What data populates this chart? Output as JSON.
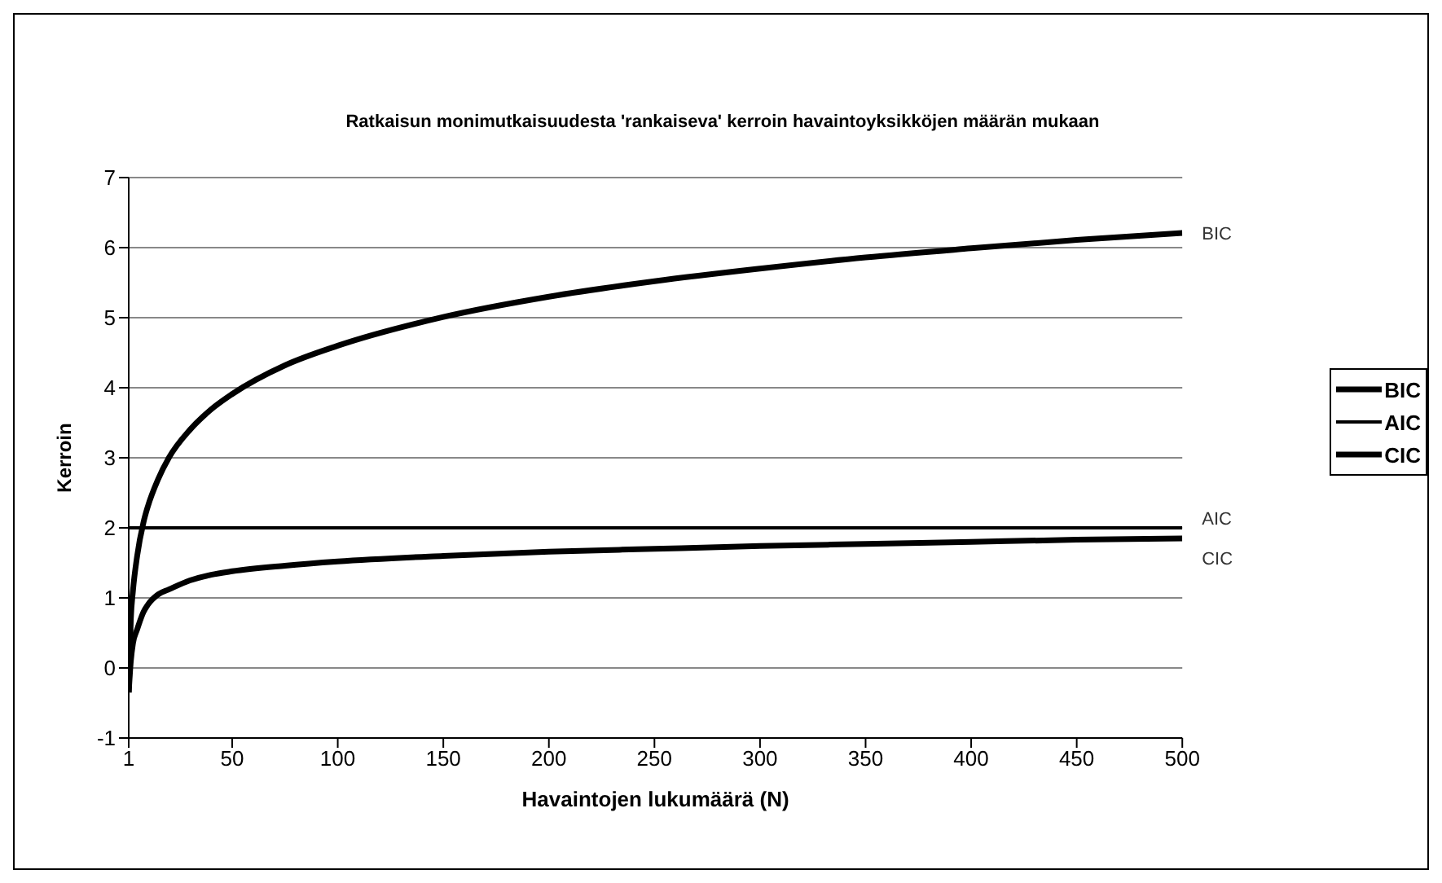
{
  "chart_data": {
    "type": "line",
    "title": "Ratkaisun monimutkaisuudesta 'rankaiseva' kerroin havaintoyksikköjen määrän mukaan",
    "xlabel": "Havaintojen lukumäärä (N)",
    "ylabel": "Kerroin",
    "x": [
      1,
      2,
      3,
      5,
      8,
      10,
      15,
      20,
      30,
      40,
      50,
      75,
      100,
      150,
      200,
      250,
      300,
      350,
      400,
      450,
      500
    ],
    "series": [
      {
        "name": "BIC",
        "color": "#000000",
        "values": [
          -0.35,
          0.7,
          1.1,
          1.6,
          2.08,
          2.3,
          2.7,
          3.0,
          3.4,
          3.69,
          3.91,
          4.32,
          4.6,
          5.01,
          5.3,
          5.52,
          5.7,
          5.86,
          5.99,
          6.11,
          6.21
        ]
      },
      {
        "name": "AIC",
        "color": "#000000",
        "values": [
          2,
          2,
          2,
          2,
          2,
          2,
          2,
          2,
          2,
          2,
          2,
          2,
          2,
          2,
          2,
          2,
          2,
          2,
          2,
          2,
          2
        ]
      },
      {
        "name": "CIC",
        "color": "#000000",
        "values": [
          -0.35,
          0.1,
          0.35,
          0.55,
          0.8,
          0.9,
          1.05,
          1.12,
          1.25,
          1.33,
          1.38,
          1.46,
          1.52,
          1.6,
          1.66,
          1.7,
          1.74,
          1.77,
          1.8,
          1.83,
          1.85
        ]
      }
    ],
    "xlim": [
      1,
      500
    ],
    "xticks": [
      1,
      50,
      100,
      150,
      200,
      250,
      300,
      350,
      400,
      450,
      500
    ],
    "ylim": [
      -1,
      7
    ],
    "yticks": [
      -1,
      0,
      1,
      2,
      3,
      4,
      5,
      6,
      7
    ],
    "grid": "y",
    "legend": "right",
    "marker": "none",
    "line_style": "solid"
  }
}
